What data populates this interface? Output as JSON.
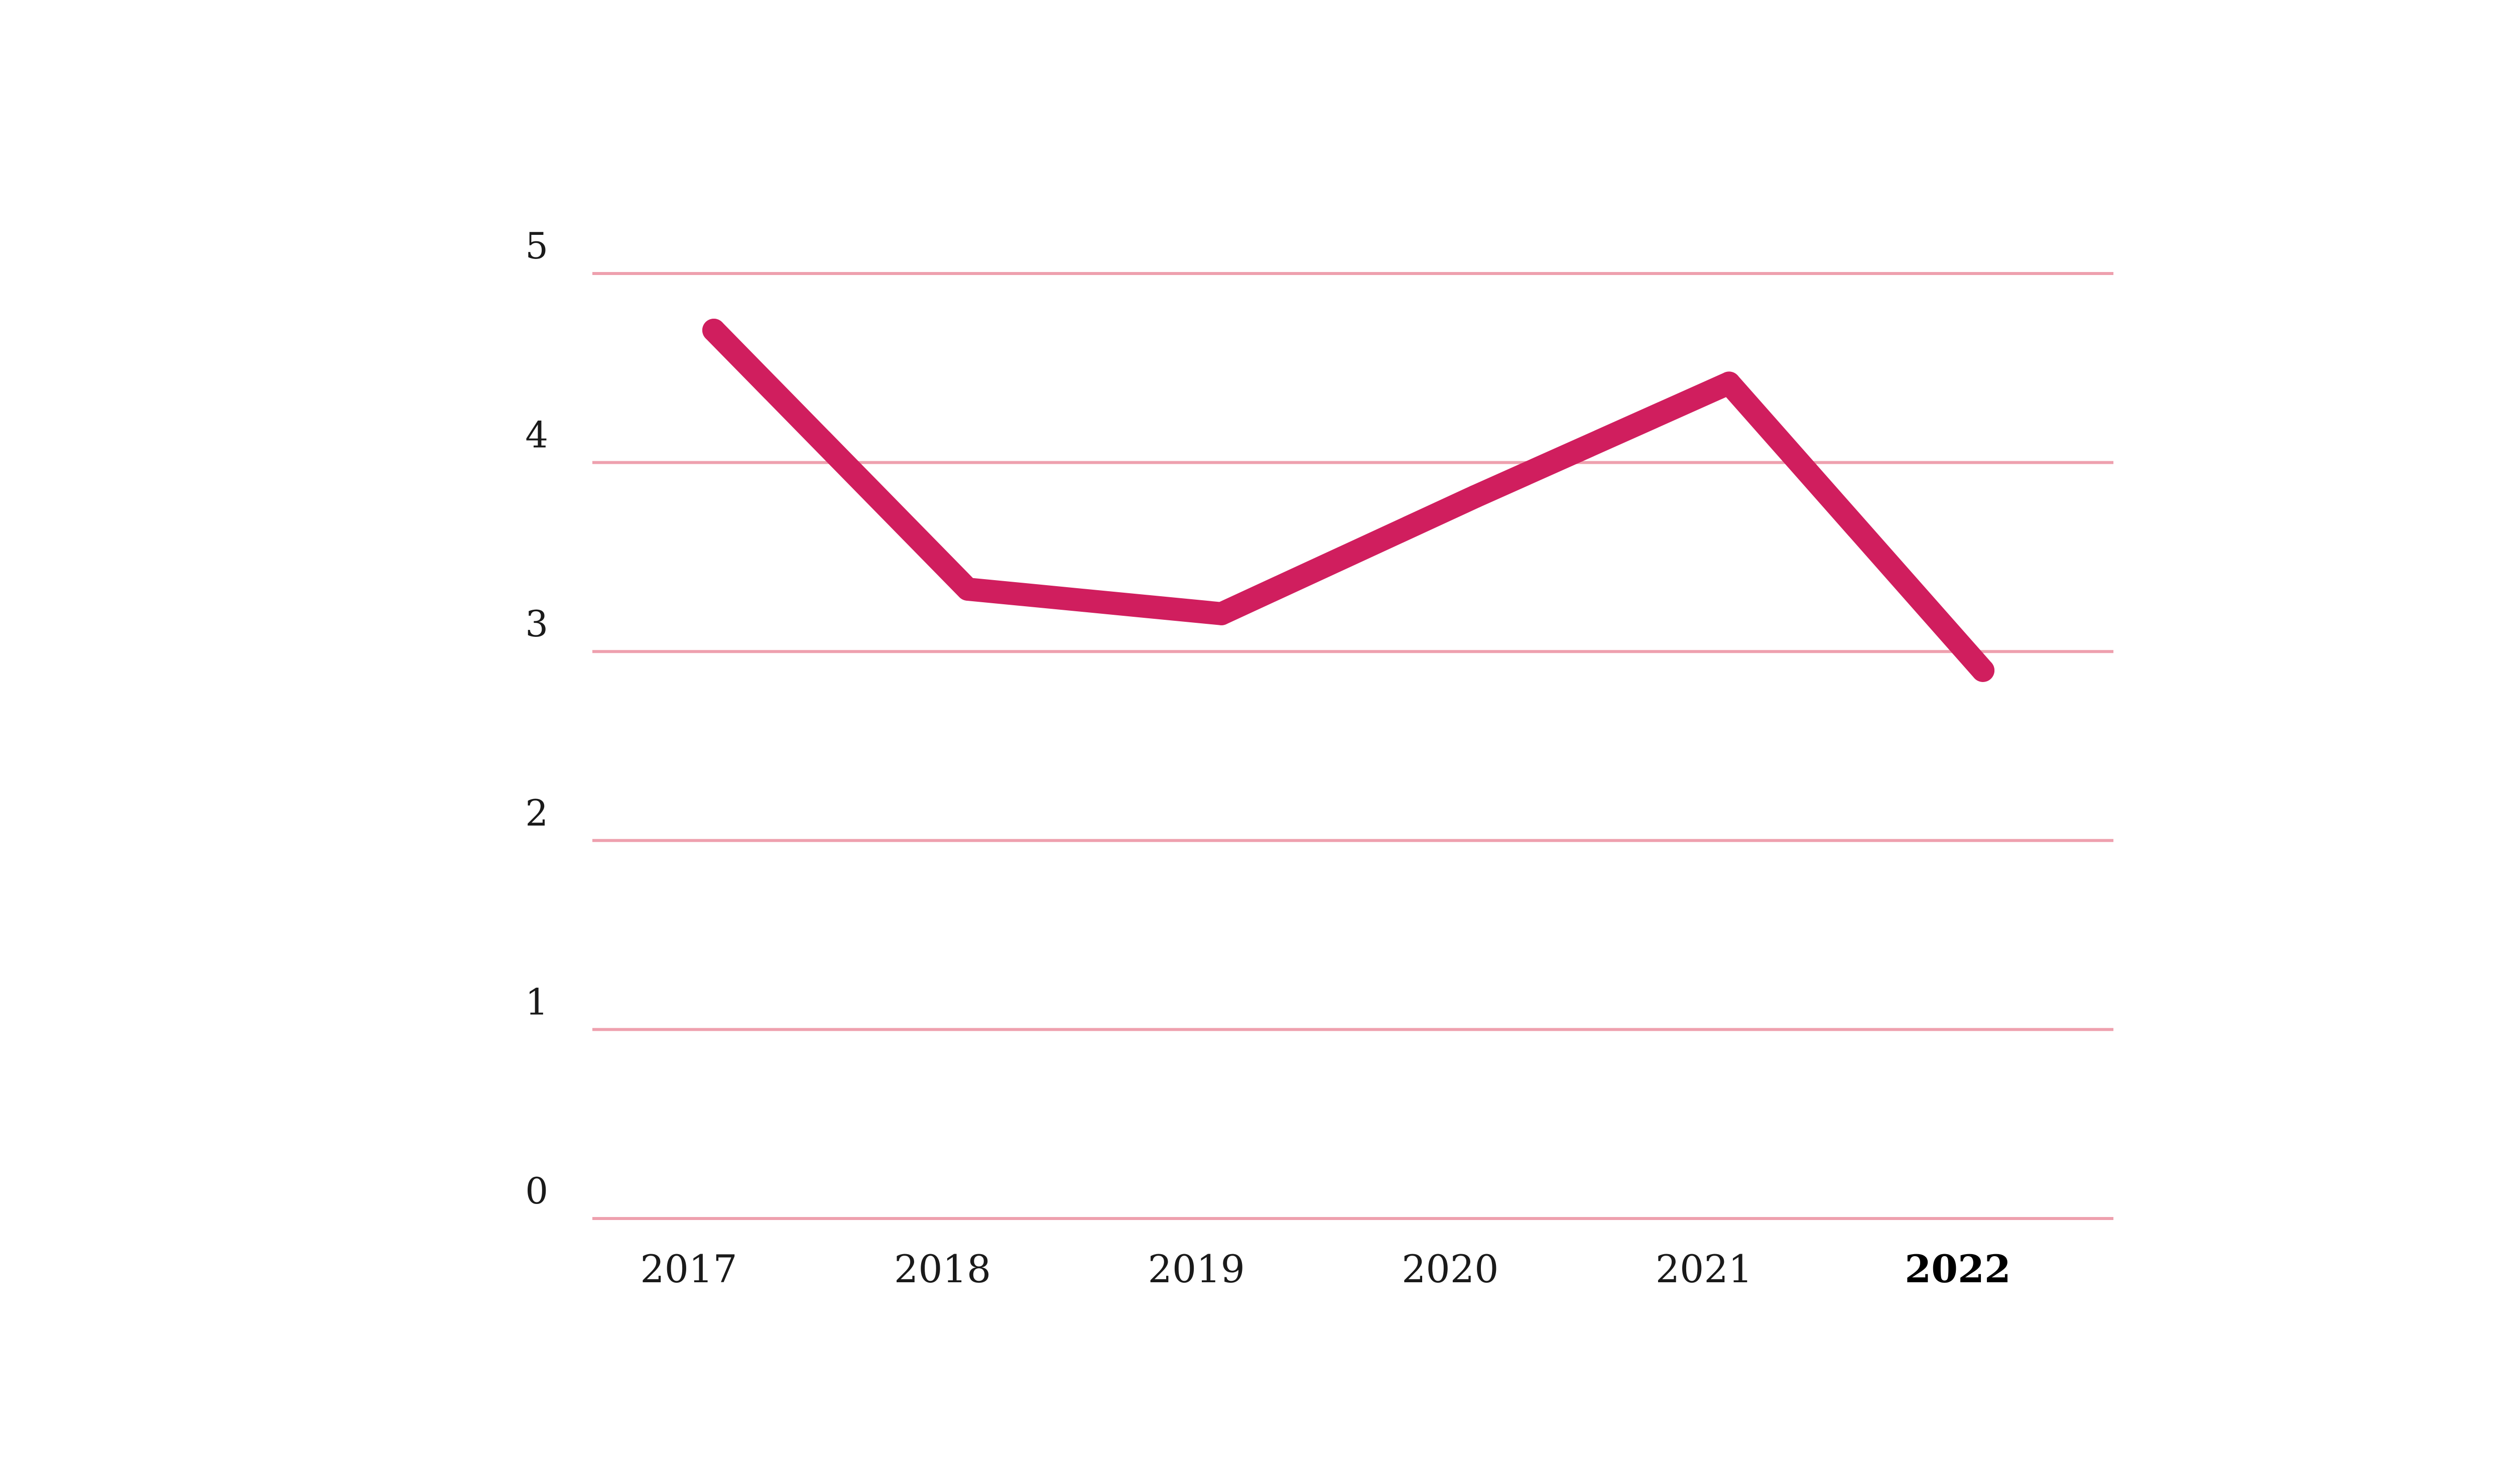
{
  "chart_data": {
    "type": "line",
    "categories": [
      "2017",
      "2018",
      "2019",
      "2020",
      "2021",
      "2022"
    ],
    "highlighted_category": "2022",
    "series": [
      {
        "values": [
          4.7,
          3.33,
          3.2,
          3.82,
          4.42,
          2.9
        ]
      }
    ],
    "y_ticks": [
      "0",
      "1",
      "2",
      "3",
      "4",
      "5"
    ],
    "ylim": [
      0,
      5
    ],
    "grid": true,
    "colors": {
      "line": "#d01e5e",
      "grid": "#eea0ae"
    }
  }
}
